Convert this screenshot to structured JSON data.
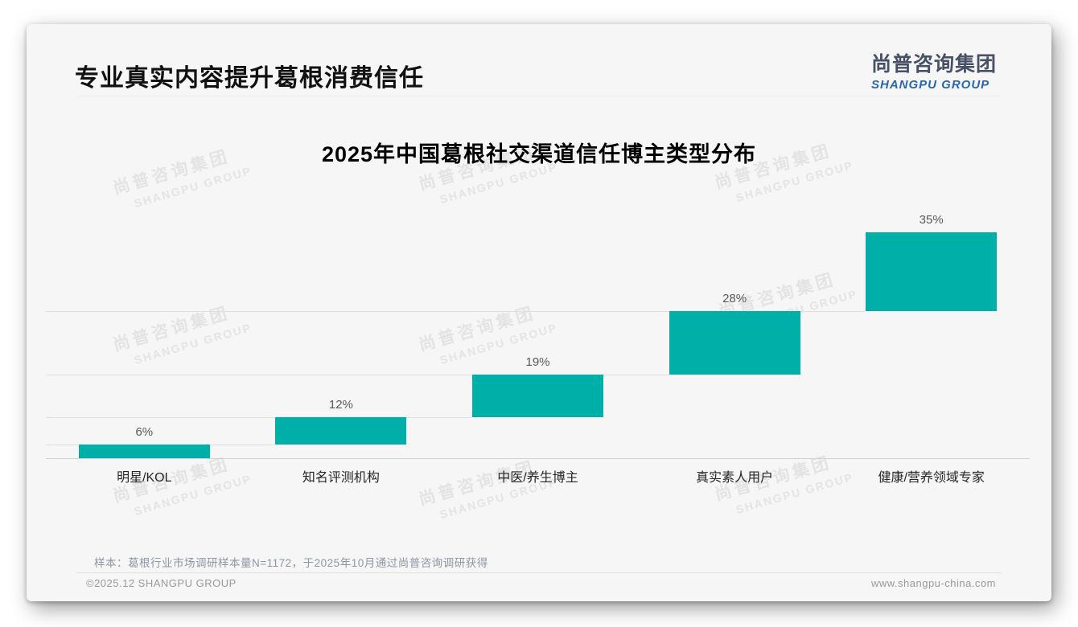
{
  "page": {
    "title": "专业真实内容提升葛根消费信任",
    "logo": {
      "cn": "尚普咨询集团",
      "en": "SHANGPU GROUP",
      "en_color": "#2A67A8"
    },
    "footnote": "样本：葛根行业市场调研样本量N=1172，于2025年10月通过尚普咨询调研获得",
    "footer_left": "©2025.12 SHANGPU GROUP",
    "footer_right": "www.shangpu-china.com",
    "watermark": {
      "cn": "尚普咨询集团",
      "en": "SHANGPU GROUP"
    }
  },
  "chart_data": {
    "type": "bar",
    "subtype": "waterfall",
    "title": "2025年中国葛根社交渠道信任博主类型分布",
    "categories": [
      "明星/KOL",
      "知名评测机构",
      "中医/养生博主",
      "真实素人用户",
      "健康/营养领域专家"
    ],
    "values": [
      6,
      12,
      19,
      28,
      35
    ],
    "value_labels": [
      "6%",
      "12%",
      "19%",
      "28%",
      "35%"
    ],
    "cumulative_starts": [
      0,
      6,
      18,
      37,
      65
    ],
    "ylim": [
      0,
      100
    ],
    "bar_color": "#00AFA7",
    "label_color": "#595959",
    "grid": "step connector lines at each cumulative level, baseline axis only",
    "legend": "none"
  }
}
